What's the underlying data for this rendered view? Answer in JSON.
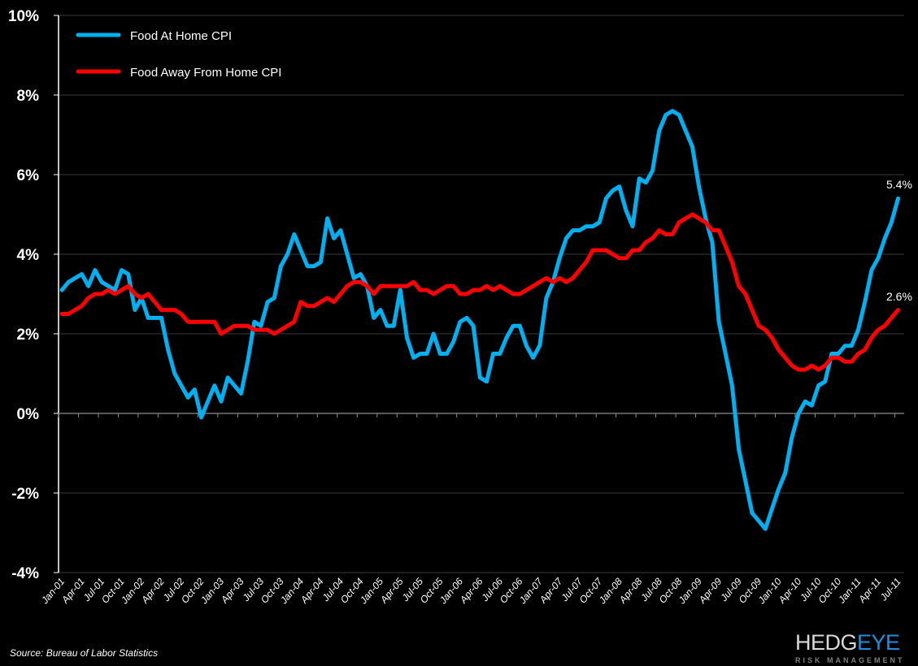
{
  "chart_data": {
    "type": "line",
    "title": "",
    "xlabel": "",
    "ylabel": "",
    "ylim": [
      -4,
      10
    ],
    "y_ticks": [
      -4,
      -2,
      0,
      2,
      4,
      6,
      8,
      10
    ],
    "y_tick_labels": [
      "-4%",
      "-2%",
      "0%",
      "2%",
      "4%",
      "6%",
      "8%",
      "10%"
    ],
    "grid": true,
    "legend_position": "top-left",
    "categories": [
      "Jan-01",
      "Feb-01",
      "Mar-01",
      "Apr-01",
      "May-01",
      "Jun-01",
      "Jul-01",
      "Aug-01",
      "Sep-01",
      "Oct-01",
      "Nov-01",
      "Dec-01",
      "Jan-02",
      "Feb-02",
      "Mar-02",
      "Apr-02",
      "May-02",
      "Jun-02",
      "Jul-02",
      "Aug-02",
      "Sep-02",
      "Oct-02",
      "Nov-02",
      "Dec-02",
      "Jan-03",
      "Feb-03",
      "Mar-03",
      "Apr-03",
      "May-03",
      "Jun-03",
      "Jul-03",
      "Aug-03",
      "Sep-03",
      "Oct-03",
      "Nov-03",
      "Dec-03",
      "Jan-04",
      "Feb-04",
      "Mar-04",
      "Apr-04",
      "May-04",
      "Jun-04",
      "Jul-04",
      "Aug-04",
      "Sep-04",
      "Oct-04",
      "Nov-04",
      "Dec-04",
      "Jan-05",
      "Feb-05",
      "Mar-05",
      "Apr-05",
      "May-05",
      "Jun-05",
      "Jul-05",
      "Aug-05",
      "Sep-05",
      "Oct-05",
      "Nov-05",
      "Dec-05",
      "Jan-06",
      "Feb-06",
      "Mar-06",
      "Apr-06",
      "May-06",
      "Jun-06",
      "Jul-06",
      "Aug-06",
      "Sep-06",
      "Oct-06",
      "Nov-06",
      "Dec-06",
      "Jan-07",
      "Feb-07",
      "Mar-07",
      "Apr-07",
      "May-07",
      "Jun-07",
      "Jul-07",
      "Aug-07",
      "Sep-07",
      "Oct-07",
      "Nov-07",
      "Dec-07",
      "Jan-08",
      "Feb-08",
      "Mar-08",
      "Apr-08",
      "May-08",
      "Jun-08",
      "Jul-08",
      "Aug-08",
      "Sep-08",
      "Oct-08",
      "Nov-08",
      "Dec-08",
      "Jan-09",
      "Feb-09",
      "Mar-09",
      "Apr-09",
      "May-09",
      "Jun-09",
      "Jul-09",
      "Aug-09",
      "Sep-09",
      "Oct-09",
      "Nov-09",
      "Dec-09",
      "Jan-10",
      "Feb-10",
      "Mar-10",
      "Apr-10",
      "May-10",
      "Jun-10",
      "Jul-10",
      "Aug-10",
      "Sep-10",
      "Oct-10",
      "Nov-10",
      "Dec-10",
      "Jan-11",
      "Feb-11",
      "Mar-11",
      "Apr-11",
      "May-11",
      "Jun-11",
      "Jul-11"
    ],
    "x_tick_labels": [
      "Jan-01",
      "Apr-01",
      "Jul-01",
      "Oct-01",
      "Jan-02",
      "Apr-02",
      "Jul-02",
      "Oct-02",
      "Jan-03",
      "Apr-03",
      "Jul-03",
      "Oct-03",
      "Jan-04",
      "Apr-04",
      "Jul-04",
      "Oct-04",
      "Jan-05",
      "Apr-05",
      "Jul-05",
      "Oct-05",
      "Jan-06",
      "Apr-06",
      "Jul-06",
      "Oct-06",
      "Jan-07",
      "Apr-07",
      "Jul-07",
      "Oct-07",
      "Jan-08",
      "Apr-08",
      "Jul-08",
      "Oct-08",
      "Jan-09",
      "Apr-09",
      "Jul-09",
      "Oct-09",
      "Jan-10",
      "Apr-10",
      "Jul-10",
      "Oct-10",
      "Jan-11",
      "Apr-11",
      "Jul-11"
    ],
    "series": [
      {
        "name": "Food At Home CPI",
        "color": "#00b0f0",
        "end_label": "5.4%",
        "values": [
          3.1,
          3.3,
          3.4,
          3.5,
          3.2,
          3.6,
          3.3,
          3.2,
          3.1,
          3.6,
          3.5,
          2.6,
          2.9,
          2.4,
          2.4,
          2.4,
          1.6,
          1.0,
          0.7,
          0.4,
          0.6,
          -0.1,
          0.3,
          0.7,
          0.3,
          0.9,
          0.7,
          0.5,
          1.3,
          2.3,
          2.2,
          2.8,
          2.9,
          3.7,
          4.0,
          4.5,
          4.1,
          3.7,
          3.7,
          3.8,
          4.9,
          4.4,
          4.6,
          4.0,
          3.4,
          3.5,
          3.2,
          2.4,
          2.6,
          2.2,
          2.2,
          3.1,
          1.9,
          1.4,
          1.5,
          1.5,
          2.0,
          1.5,
          1.5,
          1.8,
          2.3,
          2.4,
          2.2,
          0.9,
          0.8,
          1.5,
          1.5,
          1.9,
          2.2,
          2.2,
          1.7,
          1.4,
          1.7,
          2.9,
          3.3,
          3.9,
          4.4,
          4.6,
          4.6,
          4.7,
          4.7,
          4.8,
          5.4,
          5.6,
          5.7,
          5.1,
          4.7,
          5.9,
          5.8,
          6.1,
          7.1,
          7.5,
          7.6,
          7.5,
          7.1,
          6.7,
          5.7,
          4.9,
          4.3,
          2.3,
          1.5,
          0.7,
          -0.9,
          -1.7,
          -2.5,
          -2.7,
          -2.9,
          -2.4,
          -1.9,
          -1.5,
          -0.6,
          0.0,
          0.3,
          0.2,
          0.7,
          0.8,
          1.5,
          1.5,
          1.7,
          1.7,
          2.1,
          2.8,
          3.6,
          3.9,
          4.4,
          4.8,
          5.4
        ]
      },
      {
        "name": "Food Away From Home CPI",
        "color": "#ff0000",
        "end_label": "2.6%",
        "values": [
          2.5,
          2.5,
          2.6,
          2.7,
          2.9,
          3.0,
          3.0,
          3.1,
          3.0,
          3.1,
          3.2,
          3.0,
          2.9,
          3.0,
          2.8,
          2.6,
          2.6,
          2.6,
          2.5,
          2.3,
          2.3,
          2.3,
          2.3,
          2.3,
          2.0,
          2.1,
          2.2,
          2.2,
          2.2,
          2.1,
          2.1,
          2.1,
          2.0,
          2.1,
          2.2,
          2.3,
          2.8,
          2.7,
          2.7,
          2.8,
          2.9,
          2.8,
          3.0,
          3.2,
          3.3,
          3.3,
          3.2,
          3.0,
          3.2,
          3.2,
          3.2,
          3.2,
          3.2,
          3.3,
          3.1,
          3.1,
          3.0,
          3.1,
          3.2,
          3.2,
          3.0,
          3.0,
          3.1,
          3.1,
          3.2,
          3.1,
          3.2,
          3.1,
          3.0,
          3.0,
          3.1,
          3.2,
          3.3,
          3.4,
          3.3,
          3.4,
          3.3,
          3.4,
          3.6,
          3.8,
          4.1,
          4.1,
          4.1,
          4.0,
          3.9,
          3.9,
          4.1,
          4.1,
          4.3,
          4.4,
          4.6,
          4.5,
          4.5,
          4.8,
          4.9,
          5.0,
          4.9,
          4.8,
          4.6,
          4.6,
          4.2,
          3.8,
          3.2,
          3.0,
          2.6,
          2.2,
          2.1,
          1.9,
          1.6,
          1.4,
          1.2,
          1.1,
          1.1,
          1.2,
          1.1,
          1.2,
          1.4,
          1.4,
          1.3,
          1.3,
          1.5,
          1.6,
          1.9,
          2.1,
          2.2,
          2.4,
          2.6
        ]
      }
    ]
  },
  "source": "Source: Bureau of Labor Statistics",
  "logo": {
    "part1": "HEDG",
    "part2": "EYE",
    "tagline": "RISK MANAGEMENT",
    "color1": "#d9d9d9",
    "color2": "#1e8fe0"
  }
}
